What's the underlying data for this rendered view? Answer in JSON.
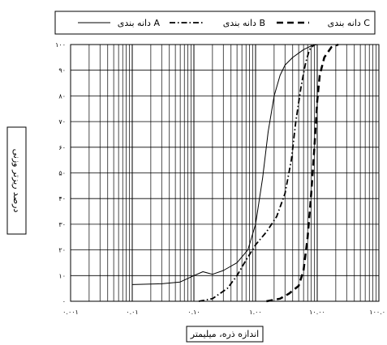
{
  "chart_data": {
    "type": "line",
    "xlabel": "اندازه ذره، میلیمتر",
    "ylabel": "درصد ریزتر وزنی",
    "x_scale": "log",
    "xlim": [
      0.001,
      100
    ],
    "ylim": [
      0,
      100
    ],
    "grid": true,
    "legend_position": "top",
    "x_ticks": [
      0.001,
      0.01,
      0.1,
      1,
      10,
      100
    ],
    "x_tick_labels": [
      "۰.۰۰۱",
      "۰.۰۱",
      "۰.۱۰",
      "۱.۰۰",
      "۱۰.۰۰",
      "۱۰۰.۰"
    ],
    "y_ticks": [
      0,
      10,
      20,
      30,
      40,
      50,
      60,
      70,
      80,
      90,
      100
    ],
    "y_tick_labels": [
      "۰",
      "۱۰",
      "۲۰",
      "۳۰",
      "۴۰",
      "۵۰",
      "۶۰",
      "۷۰",
      "۸۰",
      "۹۰",
      "۱۰۰"
    ],
    "series": [
      {
        "name": "دانه بندی A",
        "style": "solid",
        "color": "#000000",
        "points": [
          [
            0.01,
            6.5
          ],
          [
            0.03,
            6.8
          ],
          [
            0.06,
            7.5
          ],
          [
            0.1,
            10
          ],
          [
            0.14,
            11.5
          ],
          [
            0.2,
            10.5
          ],
          [
            0.3,
            12
          ],
          [
            0.5,
            15
          ],
          [
            0.75,
            20
          ],
          [
            1.0,
            30
          ],
          [
            1.3,
            48
          ],
          [
            1.6,
            66
          ],
          [
            2.0,
            80
          ],
          [
            2.5,
            88
          ],
          [
            3.0,
            92
          ],
          [
            4.0,
            95
          ],
          [
            6.0,
            98
          ],
          [
            8.0,
            99.5
          ],
          [
            10,
            100
          ]
        ]
      },
      {
        "name": "دانه بندی B",
        "style": "dashdot",
        "color": "#000000",
        "points": [
          [
            0.12,
            0
          ],
          [
            0.2,
            1
          ],
          [
            0.35,
            5
          ],
          [
            0.5,
            10
          ],
          [
            0.7,
            16
          ],
          [
            1.0,
            22
          ],
          [
            1.5,
            27
          ],
          [
            2.2,
            33
          ],
          [
            3.0,
            42
          ],
          [
            3.8,
            55
          ],
          [
            4.5,
            70
          ],
          [
            5.5,
            84
          ],
          [
            6.5,
            93
          ],
          [
            7.5,
            98
          ],
          [
            9,
            100
          ]
        ]
      },
      {
        "name": "دانه بندی C",
        "style": "dashed",
        "color": "#000000",
        "points": [
          [
            1.5,
            0
          ],
          [
            2.5,
            1
          ],
          [
            3.5,
            3
          ],
          [
            5.0,
            6
          ],
          [
            6.0,
            12
          ],
          [
            7.0,
            25
          ],
          [
            8.0,
            42
          ],
          [
            9.0,
            60
          ],
          [
            10,
            78
          ],
          [
            11,
            88
          ],
          [
            13,
            95
          ],
          [
            17,
            99
          ],
          [
            22,
            100
          ]
        ]
      }
    ]
  }
}
